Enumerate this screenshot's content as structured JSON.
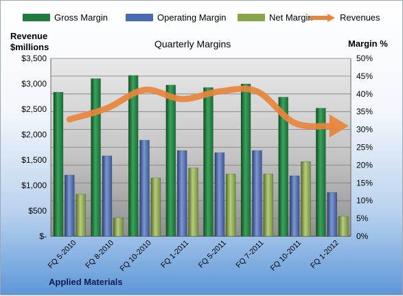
{
  "chart_data": {
    "type": "bar",
    "title": "Quarterly Margins",
    "company": "Applied Materials",
    "left_axis_label_line1": "Revenue",
    "left_axis_label_line2": "$millions",
    "right_axis_label": "Margin %",
    "categories": [
      "FQ 5-2010",
      "FQ 8-2010",
      "FQ 10-2010",
      "FQ 1-2011",
      "FQ 5-2011",
      "FQ 7-2011",
      "FQ 10-2011",
      "FQ 1-2012"
    ],
    "left_ticks": [
      "$-",
      "$500",
      "$1,000",
      "$1,500",
      "$2,000",
      "$2,500",
      "$3,000",
      "$3,500"
    ],
    "right_ticks": [
      "0%",
      "5%",
      "10%",
      "15%",
      "20%",
      "25%",
      "30%",
      "35%",
      "40%",
      "45%",
      "50%"
    ],
    "ylim_left": [
      0,
      3500
    ],
    "ylim_right": [
      0,
      50
    ],
    "grid": true,
    "legend_position": "top",
    "series": [
      {
        "name": "Gross Margin",
        "axis": "right",
        "color": "#1f7a3c",
        "values": [
          40.5,
          44.3,
          45.2,
          42.5,
          41.8,
          42.8,
          39.1,
          36.0
        ]
      },
      {
        "name": "Operating Margin",
        "axis": "right",
        "color": "#4a6ab0",
        "values": [
          17.2,
          22.6,
          27.0,
          24.1,
          23.5,
          24.1,
          17.0,
          12.3
        ]
      },
      {
        "name": "Net Margin",
        "axis": "right",
        "color": "#8aa64a",
        "values": [
          11.8,
          5.2,
          16.4,
          19.2,
          17.5,
          17.5,
          21.0,
          5.6
        ]
      },
      {
        "name": "Revenues",
        "axis": "left",
        "color": "#e8853c",
        "type": "line",
        "values": [
          2300,
          2520,
          2880,
          2700,
          2850,
          2850,
          2230,
          2170
        ]
      }
    ]
  }
}
